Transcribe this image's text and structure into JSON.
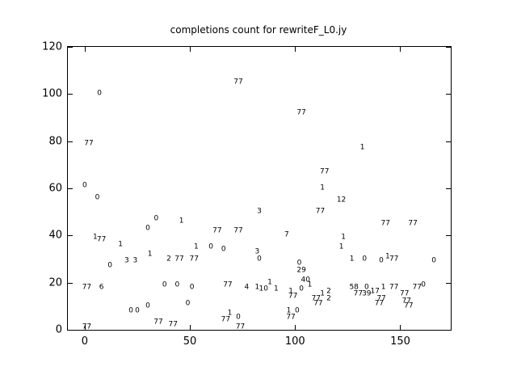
{
  "figure": {
    "background": "#ffffff",
    "axis_color": "#000000",
    "text_color": "#000000"
  },
  "chart_data": {
    "type": "scatter",
    "marker_style": "text-label",
    "title": "completions count for rewriteF_L0.jy",
    "xlabel": "",
    "ylabel": "",
    "xlim": [
      -8,
      174
    ],
    "ylim": [
      0,
      120
    ],
    "xticks": [
      0,
      50,
      100,
      150
    ],
    "yticks": [
      0,
      20,
      40,
      60,
      80,
      100,
      120
    ],
    "grid": false,
    "legend": null,
    "points": [
      {
        "x": 73,
        "y": 105,
        "label": "77"
      },
      {
        "x": 7,
        "y": 100,
        "label": "0"
      },
      {
        "x": 103,
        "y": 92,
        "label": "77"
      },
      {
        "x": 2,
        "y": 79,
        "label": "77"
      },
      {
        "x": 132,
        "y": 77,
        "label": "1"
      },
      {
        "x": 114,
        "y": 67,
        "label": "77"
      },
      {
        "x": 0,
        "y": 61,
        "label": "0"
      },
      {
        "x": 113,
        "y": 60,
        "label": "1"
      },
      {
        "x": 6,
        "y": 56,
        "label": "0"
      },
      {
        "x": 122,
        "y": 55,
        "label": "12"
      },
      {
        "x": 112,
        "y": 50,
        "label": "77"
      },
      {
        "x": 83,
        "y": 50,
        "label": "3"
      },
      {
        "x": 34,
        "y": 47,
        "label": "0"
      },
      {
        "x": 46,
        "y": 46,
        "label": "1"
      },
      {
        "x": 143,
        "y": 45,
        "label": "77"
      },
      {
        "x": 156,
        "y": 45,
        "label": "77"
      },
      {
        "x": 30,
        "y": 43,
        "label": "0"
      },
      {
        "x": 63,
        "y": 42,
        "label": "77"
      },
      {
        "x": 73,
        "y": 42,
        "label": "77"
      },
      {
        "x": 96,
        "y": 40,
        "label": "7"
      },
      {
        "x": 5,
        "y": 39,
        "label": "1"
      },
      {
        "x": 8,
        "y": 38,
        "label": "77"
      },
      {
        "x": 123,
        "y": 39,
        "label": "1"
      },
      {
        "x": 17,
        "y": 36,
        "label": "1"
      },
      {
        "x": 53,
        "y": 35,
        "label": "1"
      },
      {
        "x": 60,
        "y": 35,
        "label": "0"
      },
      {
        "x": 66,
        "y": 34,
        "label": "0"
      },
      {
        "x": 122,
        "y": 35,
        "label": "1"
      },
      {
        "x": 82,
        "y": 33,
        "label": "3"
      },
      {
        "x": 83,
        "y": 30,
        "label": "0"
      },
      {
        "x": 31,
        "y": 32,
        "label": "1"
      },
      {
        "x": 40,
        "y": 30,
        "label": "2"
      },
      {
        "x": 45,
        "y": 30,
        "label": "77"
      },
      {
        "x": 52,
        "y": 30,
        "label": "77"
      },
      {
        "x": 20,
        "y": 29,
        "label": "3"
      },
      {
        "x": 24,
        "y": 29,
        "label": "3"
      },
      {
        "x": 12,
        "y": 27,
        "label": "0"
      },
      {
        "x": 127,
        "y": 30,
        "label": "1"
      },
      {
        "x": 133,
        "y": 30,
        "label": "0"
      },
      {
        "x": 141,
        "y": 29,
        "label": "0"
      },
      {
        "x": 144,
        "y": 31,
        "label": "1"
      },
      {
        "x": 147,
        "y": 30,
        "label": "77"
      },
      {
        "x": 166,
        "y": 29,
        "label": "0"
      },
      {
        "x": 102,
        "y": 28,
        "label": "0"
      },
      {
        "x": 103,
        "y": 25,
        "label": "29"
      },
      {
        "x": 105,
        "y": 21,
        "label": "40"
      },
      {
        "x": 107,
        "y": 19,
        "label": "1"
      },
      {
        "x": 68,
        "y": 19,
        "label": "77"
      },
      {
        "x": 77,
        "y": 18,
        "label": "4"
      },
      {
        "x": 82,
        "y": 18,
        "label": "1"
      },
      {
        "x": 88,
        "y": 20,
        "label": "1"
      },
      {
        "x": 85,
        "y": 17,
        "label": "10"
      },
      {
        "x": 91,
        "y": 17,
        "label": "1"
      },
      {
        "x": 1,
        "y": 18,
        "label": "77"
      },
      {
        "x": 8,
        "y": 18,
        "label": "6"
      },
      {
        "x": 38,
        "y": 19,
        "label": "0"
      },
      {
        "x": 44,
        "y": 19,
        "label": "0"
      },
      {
        "x": 51,
        "y": 18,
        "label": "0"
      },
      {
        "x": 98,
        "y": 16,
        "label": "1"
      },
      {
        "x": 99,
        "y": 14,
        "label": "77"
      },
      {
        "x": 103,
        "y": 17,
        "label": "0"
      },
      {
        "x": 110,
        "y": 13,
        "label": "77"
      },
      {
        "x": 113,
        "y": 15,
        "label": "1"
      },
      {
        "x": 116,
        "y": 16,
        "label": "2"
      },
      {
        "x": 116,
        "y": 13,
        "label": "2"
      },
      {
        "x": 111,
        "y": 11,
        "label": "77"
      },
      {
        "x": 128,
        "y": 18,
        "label": "58"
      },
      {
        "x": 134,
        "y": 18,
        "label": "0"
      },
      {
        "x": 130,
        "y": 15,
        "label": "77"
      },
      {
        "x": 134,
        "y": 15,
        "label": "39"
      },
      {
        "x": 138,
        "y": 16,
        "label": "17"
      },
      {
        "x": 142,
        "y": 18,
        "label": "1"
      },
      {
        "x": 147,
        "y": 18,
        "label": "77"
      },
      {
        "x": 141,
        "y": 13,
        "label": "77"
      },
      {
        "x": 140,
        "y": 11,
        "label": "77"
      },
      {
        "x": 161,
        "y": 19,
        "label": "0"
      },
      {
        "x": 158,
        "y": 18,
        "label": "77"
      },
      {
        "x": 152,
        "y": 15,
        "label": "77"
      },
      {
        "x": 153,
        "y": 12,
        "label": "77"
      },
      {
        "x": 154,
        "y": 10,
        "label": "77"
      },
      {
        "x": 22,
        "y": 8,
        "label": "0"
      },
      {
        "x": 25,
        "y": 8,
        "label": "0"
      },
      {
        "x": 30,
        "y": 10,
        "label": "0"
      },
      {
        "x": 35,
        "y": 3,
        "label": "77"
      },
      {
        "x": 42,
        "y": 2,
        "label": "77"
      },
      {
        "x": 49,
        "y": 11,
        "label": "0"
      },
      {
        "x": 1,
        "y": 1,
        "label": "77"
      },
      {
        "x": 67,
        "y": 4,
        "label": "77"
      },
      {
        "x": 73,
        "y": 5,
        "label": "0"
      },
      {
        "x": 69,
        "y": 7,
        "label": "1"
      },
      {
        "x": 74,
        "y": 1,
        "label": "77"
      },
      {
        "x": 97,
        "y": 8,
        "label": "1"
      },
      {
        "x": 101,
        "y": 8,
        "label": "0"
      },
      {
        "x": 98,
        "y": 5,
        "label": "77"
      }
    ]
  }
}
